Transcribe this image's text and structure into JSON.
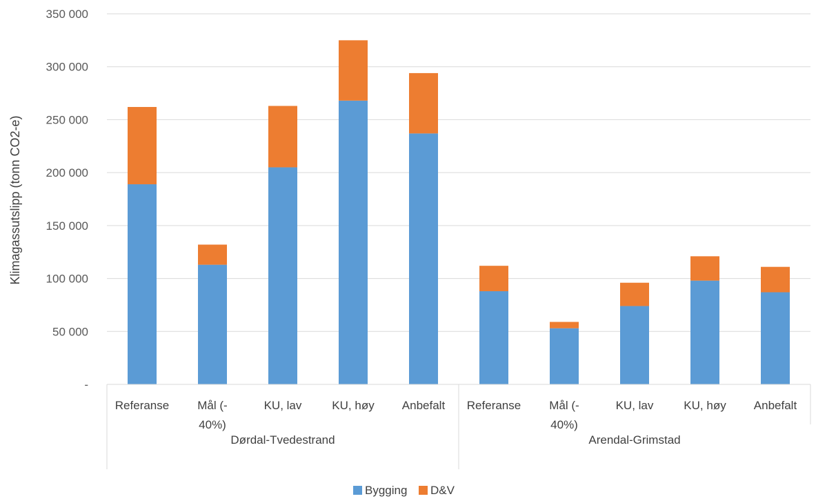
{
  "chart_data": {
    "type": "bar",
    "stacked": true,
    "ylabel": "Klimagassutslipp (tonn CO2-e)",
    "ylim": [
      0,
      350000
    ],
    "yticks": [
      {
        "value": 0,
        "label": "-"
      },
      {
        "value": 50000,
        "label": "50 000"
      },
      {
        "value": 100000,
        "label": "100 000"
      },
      {
        "value": 150000,
        "label": "150 000"
      },
      {
        "value": 200000,
        "label": "200 000"
      },
      {
        "value": 250000,
        "label": "250 000"
      },
      {
        "value": 300000,
        "label": "300 000"
      },
      {
        "value": 350000,
        "label": "350 000"
      }
    ],
    "grid": true,
    "legend": "bottom",
    "groups": [
      {
        "name": "Dørdal-Tvedestrand",
        "categories": [
          "Referanse",
          "Mål (-|40%)",
          "KU, lav",
          "KU, høy",
          "Anbefalt"
        ]
      },
      {
        "name": "Arendal-Grimstad",
        "categories": [
          "Referanse",
          "Mål (-|40%)",
          "KU, lav",
          "KU, høy",
          "Anbefalt"
        ]
      }
    ],
    "categories": [
      "Referanse",
      "Mål (-40%)",
      "KU, lav",
      "KU, høy",
      "Anbefalt",
      "Referanse",
      "Mål (-40%)",
      "KU, lav",
      "KU, høy",
      "Anbefalt"
    ],
    "series": [
      {
        "name": "Bygging",
        "color": "#5B9BD5",
        "values": [
          189000,
          113000,
          205000,
          268000,
          237000,
          88000,
          53000,
          74000,
          98000,
          87000
        ]
      },
      {
        "name": "D&V",
        "color": "#ED7D31",
        "values": [
          73000,
          19000,
          58000,
          57000,
          57000,
          24000,
          6000,
          22000,
          23000,
          24000
        ]
      }
    ]
  }
}
